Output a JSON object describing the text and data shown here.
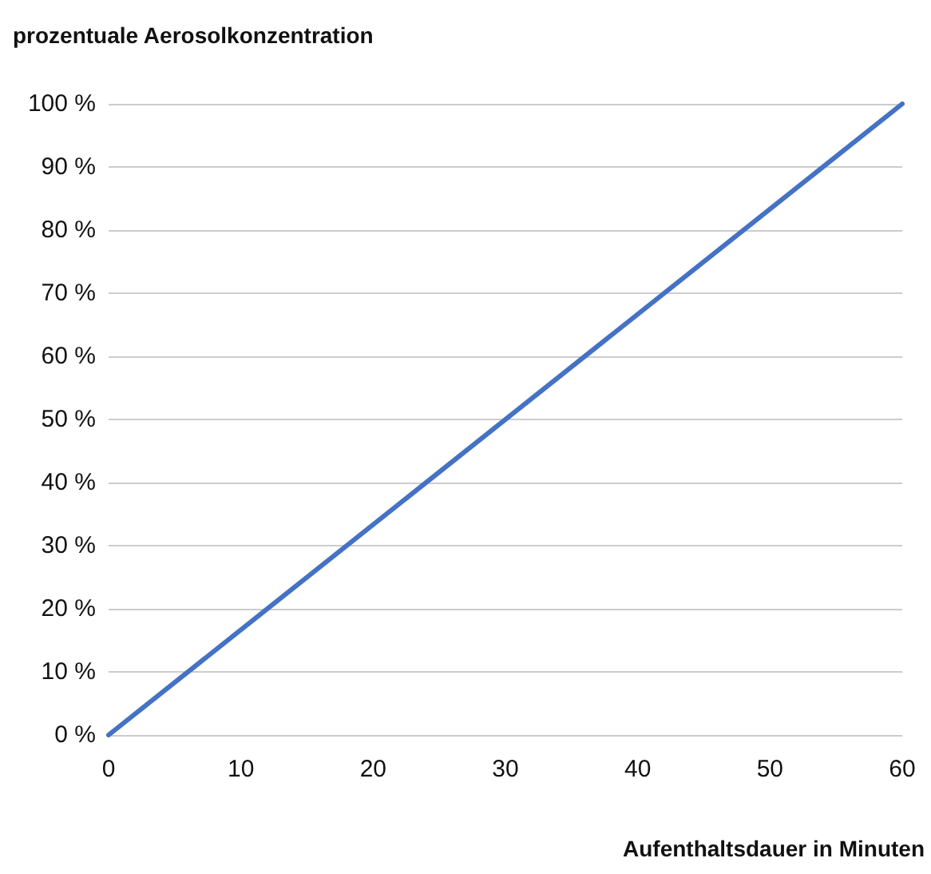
{
  "chart_data": {
    "type": "line",
    "ylabel": "prozentuale Aerosolkonzentration",
    "xlabel": "Aufenthaltsdauer in Minuten",
    "x": [
      0,
      60
    ],
    "series": [
      {
        "color": "#4472c4",
        "values": [
          0,
          100
        ]
      }
    ],
    "xlim": [
      0,
      60
    ],
    "xticks": [
      0,
      10,
      20,
      30,
      40,
      50,
      60
    ],
    "ylim": [
      0,
      100
    ],
    "yticks": [
      {
        "value": 0,
        "label": "0 %"
      },
      {
        "value": 10,
        "label": "10 %"
      },
      {
        "value": 20,
        "label": "20 %"
      },
      {
        "value": 30,
        "label": "30 %"
      },
      {
        "value": 40,
        "label": "40 %"
      },
      {
        "value": 50,
        "label": "50 %"
      },
      {
        "value": 60,
        "label": "60 %"
      },
      {
        "value": 70,
        "label": "70 %"
      },
      {
        "value": 80,
        "label": "80 %"
      },
      {
        "value": 90,
        "label": "90 %"
      },
      {
        "value": 100,
        "label": "100 %"
      }
    ],
    "grid": "y",
    "marker": "none",
    "line_style": "solid"
  }
}
